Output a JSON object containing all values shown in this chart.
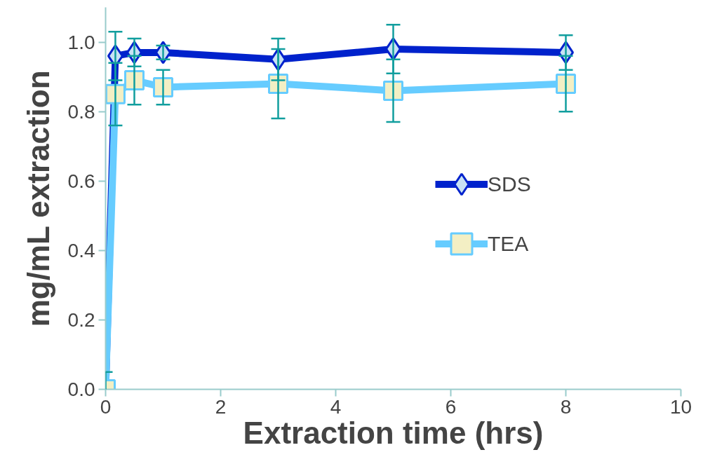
{
  "chart_data": {
    "type": "line",
    "xlabel": "Extraction time (hrs)",
    "ylabel": "mg/mL extraction",
    "x": [
      0,
      0.17,
      0.5,
      1,
      3,
      5,
      8
    ],
    "series": [
      {
        "name": "SDS",
        "color": "#0022cc",
        "marker": "diamond",
        "values": [
          0,
          0.96,
          0.97,
          0.97,
          0.95,
          0.98,
          0.97
        ],
        "errors": [
          null,
          0.07,
          0.04,
          0.02,
          0.06,
          0.07,
          0.05
        ]
      },
      {
        "name": "TEA",
        "color": "#66ccff",
        "marker": "square",
        "values": [
          0,
          0.85,
          0.89,
          0.87,
          0.88,
          0.86,
          0.88
        ],
        "errors": [
          0.05,
          0.09,
          0.07,
          0.05,
          0.1,
          0.09,
          0.08
        ]
      }
    ],
    "xlim": [
      0,
      10
    ],
    "xticks": [
      0,
      2,
      4,
      6,
      8,
      10
    ],
    "ylim": [
      0,
      1.1
    ],
    "yticks": [
      {
        "value": 0,
        "label": "0.0"
      },
      0.2,
      0.4,
      0.6,
      0.8,
      {
        "value": 1,
        "label": "1.0"
      }
    ],
    "grid": false,
    "legend": "right",
    "line_style": "solid"
  }
}
